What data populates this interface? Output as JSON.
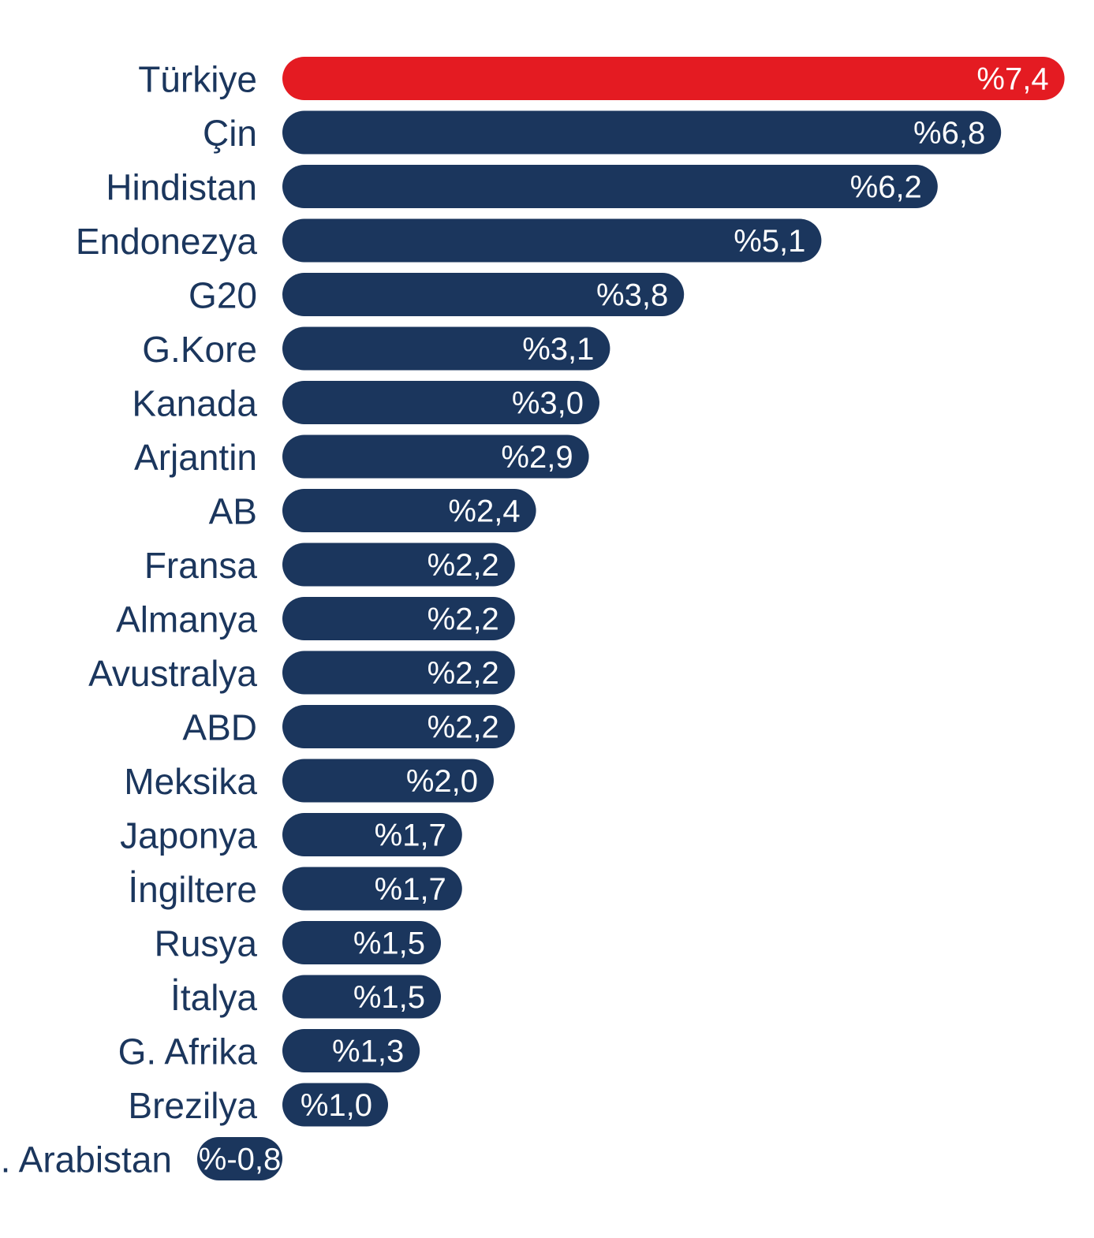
{
  "colors": {
    "highlight": "#e41b22",
    "bar": "#1b365d",
    "label_text": "#1b365d",
    "value_text": "#ffffff",
    "background": "#ffffff"
  },
  "chart_data": {
    "type": "bar",
    "orientation": "horizontal",
    "title": "",
    "xlabel": "",
    "ylabel": "",
    "grid": false,
    "legend": "none",
    "highlight_category": "Türkiye",
    "categories": [
      "Türkiye",
      "Çin",
      "Hindistan",
      "Endonezya",
      "G20",
      "G.Kore",
      "Kanada",
      "Arjantin",
      "AB",
      "Fransa",
      "Almanya",
      "Avustralya",
      "ABD",
      "Meksika",
      "Japonya",
      "İngiltere",
      "Rusya",
      "İtalya",
      "G. Afrika",
      "Brezilya",
      "S. Arabistan"
    ],
    "values": [
      7.4,
      6.8,
      6.2,
      5.1,
      3.8,
      3.1,
      3.0,
      2.9,
      2.4,
      2.2,
      2.2,
      2.2,
      2.2,
      2.0,
      1.7,
      1.7,
      1.5,
      1.5,
      1.3,
      1.0,
      -0.8
    ],
    "value_labels": [
      "%7,4",
      "%6,8",
      "%6,2",
      "%5,1",
      "%3,8",
      "%3,1",
      "%3,0",
      "%2,9",
      "%2,4",
      "%2,2",
      "%2,2",
      "%2,2",
      "%2,2",
      "%2,0",
      "%1,7",
      "%1,7",
      "%1,5",
      "%1,5",
      "%1,3",
      "%1,0",
      "%-0,8"
    ]
  }
}
